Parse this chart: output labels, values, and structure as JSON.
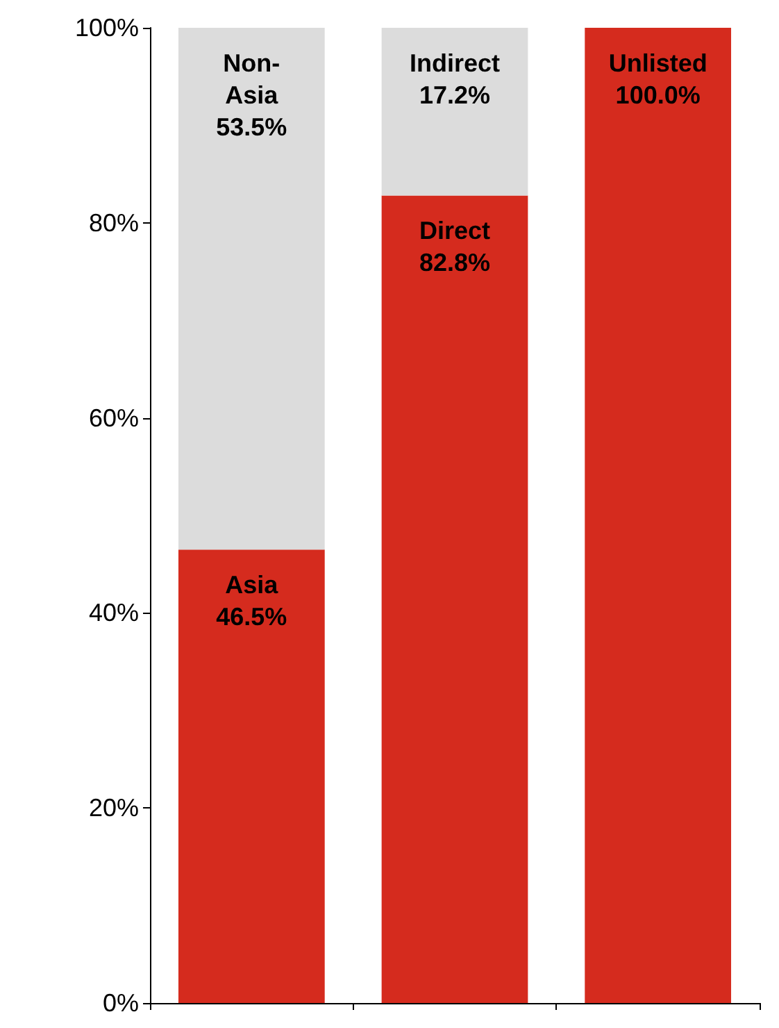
{
  "chart_data": {
    "type": "bar",
    "stacked": true,
    "categories": [
      null,
      null,
      null
    ],
    "series": [
      {
        "color": "#d52b1e",
        "values": [
          46.5,
          82.8,
          100
        ],
        "value_labels": [
          "Asia\n46.5%",
          "Direct\n82.8%",
          "Unlisted\n100.0%"
        ]
      },
      {
        "color": "#dcdcdc",
        "values": [
          53.5,
          17.2,
          0
        ],
        "value_labels": [
          "Non-\nAsia\n53.5%",
          "Indirect\n17.2%",
          null
        ]
      }
    ],
    "ylim": [
      0,
      100
    ],
    "yticks": [
      {
        "value": 0,
        "label": "0%"
      },
      {
        "value": 20,
        "label": "20%"
      },
      {
        "value": 40,
        "label": "40%"
      },
      {
        "value": 60,
        "label": "60%"
      },
      {
        "value": 80,
        "label": "80%"
      },
      {
        "value": 100,
        "label": "100%"
      }
    ],
    "grid": false
  }
}
